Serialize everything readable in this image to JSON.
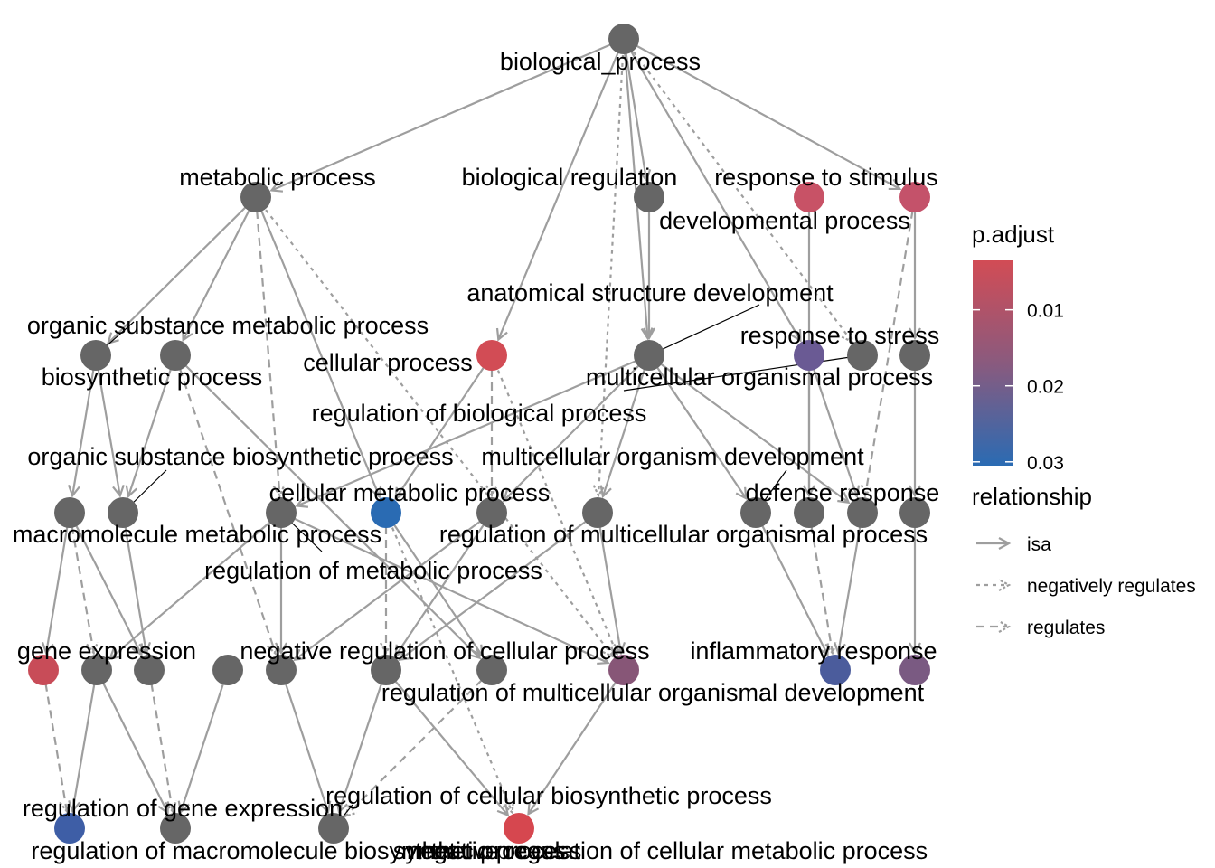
{
  "colors": {
    "edge": "#9e9e9e",
    "node_default": "#666666",
    "padjust_low": "#d24c55",
    "padjust_high": "#2a6bb3"
  },
  "nodes": [
    {
      "id": "bp",
      "label": "biological_process",
      "fill": "#666666"
    },
    {
      "id": "mp",
      "label": "metabolic process",
      "fill": "#666666"
    },
    {
      "id": "breg",
      "label": "biological regulation",
      "fill": "#666666"
    },
    {
      "id": "dev",
      "label": "developmental process",
      "fill": "#c85266"
    },
    {
      "id": "rts",
      "label": "response to stimulus",
      "fill": "#c4526a"
    },
    {
      "id": "osmp",
      "label": "organic substance metabolic process",
      "fill": "#666666"
    },
    {
      "id": "biop",
      "label": "biosynthetic process",
      "fill": "#666666"
    },
    {
      "id": "cp",
      "label": "cellular process",
      "fill": "#d24c55"
    },
    {
      "id": "asd",
      "label": "anatomical structure development",
      "fill": "#666666"
    },
    {
      "id": "rtst",
      "label": "response to stress",
      "fill": "#6a5a94"
    },
    {
      "id": "mop",
      "label": "multicellular organismal process",
      "fill": "#666666"
    },
    {
      "id": "rsn",
      "label": "",
      "fill": "#666666"
    },
    {
      "id": "mom",
      "label": "macromolecule metabolic process",
      "fill": "#666666"
    },
    {
      "id": "osbp",
      "label": "organic substance biosynthetic process",
      "fill": "#666666"
    },
    {
      "id": "cmp",
      "label": "cellular metabolic process",
      "fill": "#666666"
    },
    {
      "id": "rbp",
      "label": "regulation of biological process",
      "fill": "#2a6bb3"
    },
    {
      "id": "rmp",
      "label": "regulation of metabolic process",
      "fill": "#666666"
    },
    {
      "id": "rmop",
      "label": "regulation of multicellular organismal process",
      "fill": "#666666"
    },
    {
      "id": "mod",
      "label": "multicellular organism development",
      "fill": "#666666"
    },
    {
      "id": "def",
      "label": "defense response",
      "fill": "#666666"
    },
    {
      "id": "r4a",
      "label": "",
      "fill": "#666666"
    },
    {
      "id": "r4b",
      "label": "",
      "fill": "#666666"
    },
    {
      "id": "ge",
      "label": "gene expression",
      "fill": "#c84c58"
    },
    {
      "id": "r5a",
      "label": "",
      "fill": "#666666"
    },
    {
      "id": "r5b",
      "label": "",
      "fill": "#666666"
    },
    {
      "id": "r5c",
      "label": "",
      "fill": "#666666"
    },
    {
      "id": "r5d",
      "label": "",
      "fill": "#666666"
    },
    {
      "id": "nrcp",
      "label": "negative regulation of cellular process",
      "fill": "#666666"
    },
    {
      "id": "r5e",
      "label": "",
      "fill": "#666666"
    },
    {
      "id": "rmod",
      "label": "regulation of multicellular organismal development",
      "fill": "#875677"
    },
    {
      "id": "infl",
      "label": "inflammatory response",
      "fill": "#4b5c9c"
    },
    {
      "id": "r5f",
      "label": "",
      "fill": "#7a5a82"
    },
    {
      "id": "rge",
      "label": "regulation of gene expression",
      "fill": "#3e5ea6"
    },
    {
      "id": "rmbp",
      "label": "regulation of macromolecule biosynthetic process",
      "fill": "#666666"
    },
    {
      "id": "rcbp",
      "label": "regulation of cellular biosynthetic process",
      "fill": "#666666"
    },
    {
      "id": "srp",
      "label": "synthetic process",
      "fill": "#d6474f"
    },
    {
      "id": "nrcmp",
      "label": "negative regulation of cellular metabolic process",
      "fill": "#d6474f"
    }
  ],
  "edges": [
    {
      "from": "bp",
      "to": "mp",
      "type": "isa"
    },
    {
      "from": "bp",
      "to": "breg",
      "type": "isa"
    },
    {
      "from": "bp",
      "to": "cp",
      "type": "isa"
    },
    {
      "from": "bp",
      "to": "rts",
      "type": "isa"
    },
    {
      "from": "bp",
      "to": "rtst",
      "type": "isa"
    },
    {
      "from": "bp",
      "to": "asd",
      "type": "isa"
    },
    {
      "from": "bp",
      "to": "mop",
      "type": "negatively regulates"
    },
    {
      "from": "bp",
      "to": "rmop",
      "type": "negatively regulates"
    },
    {
      "from": "breg",
      "to": "asd",
      "type": "isa"
    },
    {
      "from": "mp",
      "to": "osmp",
      "type": "isa"
    },
    {
      "from": "mp",
      "to": "biop",
      "type": "isa"
    },
    {
      "from": "mp",
      "to": "rbp",
      "type": "isa"
    },
    {
      "from": "mp",
      "to": "cmp",
      "type": "regulates"
    },
    {
      "from": "mp",
      "to": "rmod",
      "type": "negatively regulates"
    },
    {
      "from": "osmp",
      "to": "mom",
      "type": "isa"
    },
    {
      "from": "osmp",
      "to": "osbp",
      "type": "isa"
    },
    {
      "from": "biop",
      "to": "osbp",
      "type": "isa"
    },
    {
      "from": "biop",
      "to": "r5d",
      "type": "regulates"
    },
    {
      "from": "biop",
      "to": "r5e",
      "type": "isa"
    },
    {
      "from": "cp",
      "to": "rbp",
      "type": "isa"
    },
    {
      "from": "cp",
      "to": "rmp",
      "type": "regulates"
    },
    {
      "from": "cp",
      "to": "rmod",
      "type": "negatively regulates"
    },
    {
      "from": "asd",
      "to": "cmp",
      "type": "isa"
    },
    {
      "from": "asd",
      "to": "rmp",
      "type": "isa"
    },
    {
      "from": "asd",
      "to": "rmop",
      "type": "isa"
    },
    {
      "from": "asd",
      "to": "mod",
      "type": "isa"
    },
    {
      "from": "asd",
      "to": "r4a",
      "type": "isa"
    },
    {
      "from": "rts",
      "to": "rsn",
      "type": "isa"
    },
    {
      "from": "rts",
      "to": "r4a",
      "type": "regulates"
    },
    {
      "from": "rtst",
      "to": "r4a",
      "type": "isa"
    },
    {
      "from": "rtst",
      "to": "def",
      "type": "isa"
    },
    {
      "from": "rsn",
      "to": "r4b",
      "type": "isa"
    },
    {
      "from": "dev",
      "to": "def",
      "type": "isa"
    },
    {
      "from": "mod",
      "to": "infl",
      "type": "isa"
    },
    {
      "from": "def",
      "to": "infl",
      "type": "regulates"
    },
    {
      "from": "r4a",
      "to": "infl",
      "type": "isa"
    },
    {
      "from": "r4b",
      "to": "r5f",
      "type": "isa"
    },
    {
      "from": "mom",
      "to": "ge",
      "type": "isa"
    },
    {
      "from": "mom",
      "to": "r5a",
      "type": "regulates"
    },
    {
      "from": "mom",
      "to": "r5b",
      "type": "isa"
    },
    {
      "from": "osbp",
      "to": "r5b",
      "type": "isa"
    },
    {
      "from": "cmp",
      "to": "r5a",
      "type": "isa"
    },
    {
      "from": "cmp",
      "to": "r5d",
      "type": "isa"
    },
    {
      "from": "cmp",
      "to": "rmod",
      "type": "isa"
    },
    {
      "from": "rbp",
      "to": "nrcp",
      "type": "regulates"
    },
    {
      "from": "rbp",
      "to": "r5e",
      "type": "isa"
    },
    {
      "from": "rbp",
      "to": "srp",
      "type": "negatively regulates"
    },
    {
      "from": "rmp",
      "to": "nrcp",
      "type": "isa"
    },
    {
      "from": "rmp",
      "to": "r5d",
      "type": "isa"
    },
    {
      "from": "rmop",
      "to": "nrcp",
      "type": "isa"
    },
    {
      "from": "rmop",
      "to": "rmod",
      "type": "isa"
    },
    {
      "from": "ge",
      "to": "rge",
      "type": "regulates"
    },
    {
      "from": "r5a",
      "to": "rge",
      "type": "isa"
    },
    {
      "from": "r5a",
      "to": "rmbp",
      "type": "isa"
    },
    {
      "from": "r5b",
      "to": "rmbp",
      "type": "regulates"
    },
    {
      "from": "r5c",
      "to": "rmbp",
      "type": "isa"
    },
    {
      "from": "r5d",
      "to": "rcbp",
      "type": "isa"
    },
    {
      "from": "r5e",
      "to": "rcbp",
      "type": "regulates"
    },
    {
      "from": "nrcp",
      "to": "rcbp",
      "type": "isa"
    },
    {
      "from": "nrcp",
      "to": "srp",
      "type": "isa"
    },
    {
      "from": "rmod",
      "to": "srp",
      "type": "isa"
    }
  ],
  "legend": {
    "color_title": "p.adjust",
    "color_ticks": [
      "0.01",
      "0.02",
      "0.03"
    ],
    "color_domain": [
      0.0035,
      0.0305
    ],
    "color_tick_values": [
      0.01,
      0.02,
      0.03
    ],
    "edge_title": "relationship",
    "edge_types": [
      {
        "label": "isa",
        "type": "isa"
      },
      {
        "label": "negatively regulates",
        "type": "negatively regulates"
      },
      {
        "label": "regulates",
        "type": "regulates"
      }
    ]
  }
}
